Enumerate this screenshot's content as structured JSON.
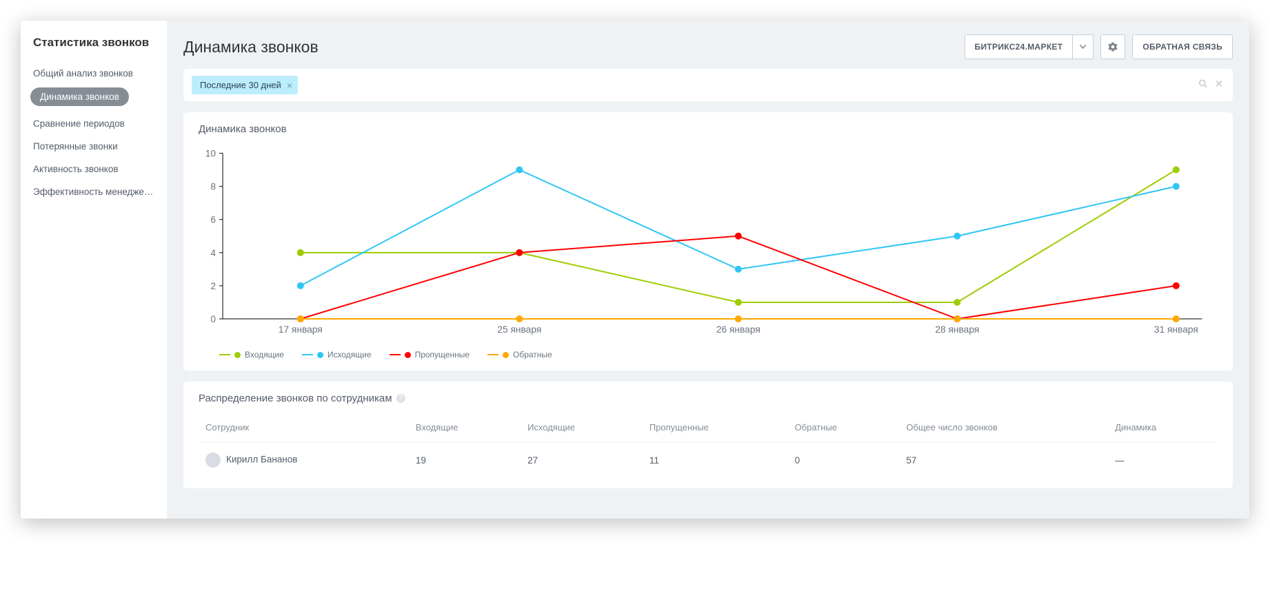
{
  "sidebar": {
    "title": "Статистика звонков",
    "items": [
      {
        "label": "Общий анализ звонков",
        "active": false
      },
      {
        "label": "Динамика звонков",
        "active": true
      },
      {
        "label": "Сравнение периодов",
        "active": false
      },
      {
        "label": "Потерянные звонки",
        "active": false
      },
      {
        "label": "Активность звонков",
        "active": false
      },
      {
        "label": "Эффективность менедже…",
        "active": false
      }
    ]
  },
  "header": {
    "page_title": "Динамика звонков",
    "market_btn": "БИТРИКС24.МАРКЕТ",
    "feedback_btn": "ОБРАТНАЯ СВЯЗЬ"
  },
  "filter": {
    "tag_label": "Последние 30 дней"
  },
  "chart": {
    "title": "Динамика звонков",
    "type": "line",
    "categories": [
      "17 января",
      "25 января",
      "26 января",
      "28 января",
      "31 января"
    ],
    "series": [
      {
        "name": "Входящие",
        "color": "#9dcc00",
        "values": [
          4,
          4,
          1,
          1,
          9
        ]
      },
      {
        "name": "Исходящие",
        "color": "#2fc6f6",
        "values": [
          2,
          9,
          3,
          5,
          8
        ]
      },
      {
        "name": "Пропущенные",
        "color": "#ff0000",
        "values": [
          0,
          4,
          5,
          0,
          2
        ]
      },
      {
        "name": "Обратные",
        "color": "#ffa800",
        "values": [
          0,
          0,
          0,
          0,
          0
        ]
      }
    ],
    "ylim": [
      0,
      10
    ],
    "ytick_step": 2,
    "marker_radius": 4,
    "line_width": 1.6,
    "background_color": "#ffffff",
    "axis_color": "#333333",
    "tick_font_size": 11,
    "tick_color": "#6a737f",
    "legend_font_size": 12
  },
  "distribution": {
    "title": "Распределение звонков по сотрудникам",
    "columns": [
      "Сотрудник",
      "Входящие",
      "Исходящие",
      "Пропущенные",
      "Обратные",
      "Общее число звонков",
      "Динамика"
    ],
    "rows": [
      {
        "name": "Кирилл Бананов",
        "in": "19",
        "out": "27",
        "missed": "11",
        "back": "0",
        "total": "57",
        "trend": "—"
      }
    ]
  }
}
